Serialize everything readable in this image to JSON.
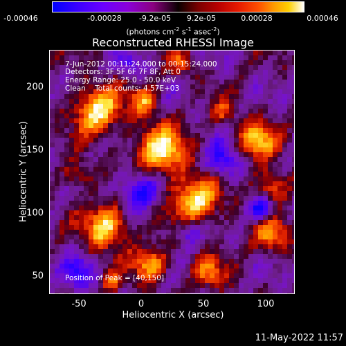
{
  "colorbar": {
    "ticks": [
      "-0.00046",
      "-0.00028",
      "-9.2e-05",
      "9.2e-05",
      "0.00028",
      "0.00046"
    ],
    "units_prefix": "(photons cm",
    "units_exp1": "-2",
    "units_mid1": " s",
    "units_exp2": "-1",
    "units_mid2": " asec",
    "units_exp3": "-2",
    "units_suffix": ")"
  },
  "title": "Reconstructed RHESSI Image",
  "annotations": {
    "time": "7-Jun-2012 00:11:24.000 to 00:15:24.000",
    "detectors": "Detectors: 3F 5F 6F 7F 8F, Att 0",
    "energy": "Energy Range: 25.0 - 50.0 keV",
    "clean": "Clean    Total counts: 4.57E+03",
    "peak": "Position of Peak = [40,150]"
  },
  "axes": {
    "xlabel": "Heliocentric X (arcsec)",
    "ylabel": "Heliocentric Y (arcsec)",
    "xticks": [
      "-50",
      "0",
      "50",
      "100"
    ],
    "yticks": [
      "200",
      "150",
      "100",
      "50"
    ],
    "xrange": [
      -72,
      124
    ],
    "yrange": [
      34,
      229
    ]
  },
  "datestamp": "11-May-2022 11:57",
  "colors": {
    "background": "#000000",
    "negative_max": "#0000ff",
    "zero": "#000000",
    "positive_max": "#ffffff"
  }
}
